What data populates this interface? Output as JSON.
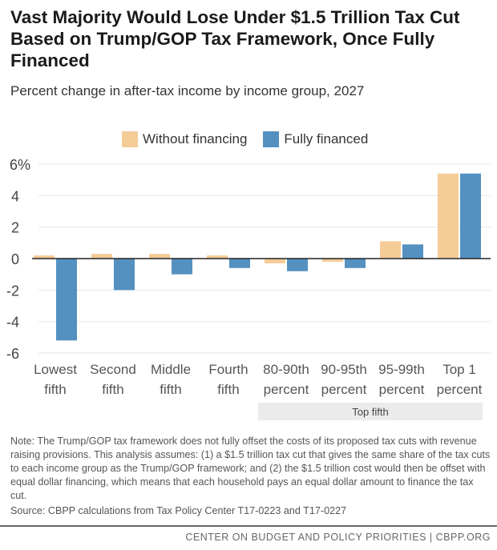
{
  "title": "Vast Majority Would Lose Under $1.5 Trillion Tax Cut Based on Trump/GOP Tax Framework, Once Fully Financed",
  "subtitle": "Percent change in after-tax income by income group, 2027",
  "chart_data": {
    "type": "bar",
    "categories": [
      [
        "Lowest",
        "fifth"
      ],
      [
        "Second",
        "fifth"
      ],
      [
        "Middle",
        "fifth"
      ],
      [
        "Fourth",
        "fifth"
      ],
      [
        "80-90th",
        "percent"
      ],
      [
        "90-95th",
        "percent"
      ],
      [
        "95-99th",
        "percent"
      ],
      [
        "Top 1",
        "percent"
      ]
    ],
    "series": [
      {
        "name": "Without financing",
        "color": "#f5cb98",
        "values": [
          0.2,
          0.3,
          0.3,
          0.2,
          -0.3,
          -0.2,
          1.1,
          5.4
        ]
      },
      {
        "name": "Fully financed",
        "color": "#5490c0",
        "values": [
          -5.2,
          -2.0,
          -1.0,
          -0.6,
          -0.8,
          -0.6,
          0.9,
          5.4
        ]
      }
    ],
    "ylim": [
      -6,
      6
    ],
    "yticks": [
      6,
      4,
      2,
      0,
      -2,
      -4,
      -6
    ],
    "ytick_labels": [
      "6%",
      "4",
      "2",
      "0",
      "-2",
      "-4",
      "-6"
    ],
    "grid": true,
    "legend": "top",
    "group_label": "Top fifth"
  },
  "note": "Note:  The Trump/GOP tax framework does not fully offset the costs of its proposed tax cuts with revenue raising provisions.  This analysis assumes: (1) a $1.5 trillion tax cut that gives the same share of the tax cuts to each income group as the Trump/GOP framework; and (2) the $1.5 trillion cost would then be offset with equal dollar financing, which means that each household pays an equal dollar amount to finance the tax cut.",
  "source": "Source: CBPP calculations from Tax Policy Center T17-0223 and T17-0227",
  "footer": "CENTER ON BUDGET AND POLICY PRIORITIES | CBPP.ORG"
}
